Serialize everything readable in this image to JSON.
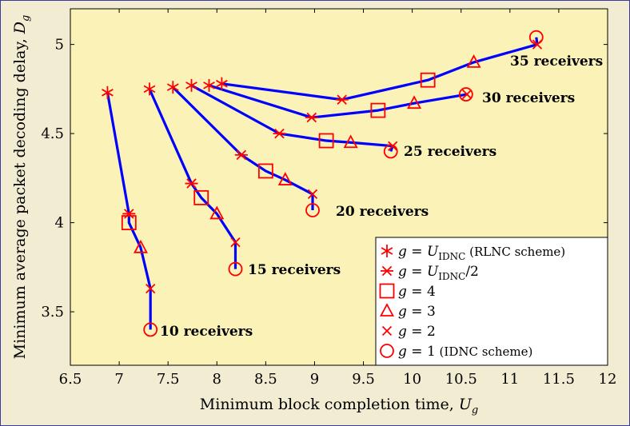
{
  "chart_data": {
    "type": "line",
    "title": "",
    "xlabel_main": "Minimum block completion time, ",
    "xlabel_var": "U",
    "xlabel_sub": "g",
    "ylabel_main": "Minimum average packet decoding delay, ",
    "ylabel_var": "D",
    "ylabel_sub": "g",
    "xlim": [
      6.5,
      12
    ],
    "ylim": [
      3.2,
      5.2
    ],
    "xticks": [
      "6.5",
      "7",
      "7.5",
      "8",
      "8.5",
      "9",
      "9.5",
      "10",
      "10.5",
      "11",
      "11.5",
      "12"
    ],
    "yticks": [
      "3.5",
      "4",
      "4.5",
      "5"
    ],
    "colors": {
      "line": "#0000ff",
      "marker": "#ff0000",
      "plot_bg": "#fbf2b8"
    },
    "series": [
      {
        "name": "10 receivers",
        "label": "10 receivers",
        "points": [
          [
            6.88,
            4.73
          ],
          [
            7.1,
            4.05
          ],
          [
            7.1,
            4.0
          ],
          [
            7.22,
            3.86
          ],
          [
            7.32,
            3.63
          ],
          [
            7.32,
            3.4
          ]
        ],
        "markers": [
          "U",
          "U2",
          "g4",
          "g3",
          "g2",
          "g1"
        ]
      },
      {
        "name": "15 receivers",
        "label": "15 receivers",
        "points": [
          [
            7.31,
            4.75
          ],
          [
            7.74,
            4.22
          ],
          [
            7.84,
            4.14
          ],
          [
            8.0,
            4.05
          ],
          [
            8.19,
            3.89
          ],
          [
            8.19,
            3.74
          ]
        ],
        "markers": [
          "U",
          "U2",
          "g4",
          "g3",
          "g2",
          "g1"
        ]
      },
      {
        "name": "20 receivers",
        "label": "20 receivers",
        "points": [
          [
            7.55,
            4.76
          ],
          [
            8.25,
            4.38
          ],
          [
            8.5,
            4.29
          ],
          [
            8.7,
            4.24
          ],
          [
            8.98,
            4.16
          ],
          [
            8.98,
            4.07
          ]
        ],
        "markers": [
          "U",
          "U2",
          "g4",
          "g3",
          "g2",
          "g1"
        ]
      },
      {
        "name": "25 receivers",
        "label": "25 receivers",
        "points": [
          [
            7.74,
            4.77
          ],
          [
            8.64,
            4.5
          ],
          [
            9.12,
            4.46
          ],
          [
            9.37,
            4.45
          ],
          [
            9.8,
            4.43
          ],
          [
            9.78,
            4.4
          ]
        ],
        "markers": [
          "U",
          "U2",
          "g4",
          "g3",
          "g2",
          "g1"
        ]
      },
      {
        "name": "30 receivers",
        "label": "30 receivers",
        "points": [
          [
            7.92,
            4.77
          ],
          [
            8.97,
            4.59
          ],
          [
            9.65,
            4.63
          ],
          [
            10.02,
            4.67
          ],
          [
            10.56,
            4.72
          ],
          [
            10.55,
            4.72
          ]
        ],
        "markers": [
          "U",
          "U2",
          "g4",
          "g3",
          "g2",
          "g1"
        ]
      },
      {
        "name": "35 receivers",
        "label": "35 receivers",
        "points": [
          [
            8.05,
            4.78
          ],
          [
            9.28,
            4.69
          ],
          [
            10.16,
            4.8
          ],
          [
            10.63,
            4.9
          ],
          [
            11.28,
            5.0
          ],
          [
            11.27,
            5.04
          ]
        ],
        "markers": [
          "U",
          "U2",
          "g4",
          "g3",
          "g2",
          "g1"
        ]
      }
    ],
    "legend": {
      "position": "bottom-right",
      "entries": [
        {
          "marker": "U",
          "prefix": "g = U",
          "sub": "IDNC",
          "suffix": " (RLNC scheme)"
        },
        {
          "marker": "U2",
          "prefix": "g = U",
          "sub": "IDNC",
          "suffix": "/2"
        },
        {
          "marker": "g4",
          "prefix": "g = 4",
          "sub": "",
          "suffix": ""
        },
        {
          "marker": "g3",
          "prefix": "g = 3",
          "sub": "",
          "suffix": ""
        },
        {
          "marker": "g2",
          "prefix": "g = 2",
          "sub": "",
          "suffix": ""
        },
        {
          "marker": "g1",
          "prefix": "g = 1",
          "sub": "",
          "suffix": " (IDNC scheme)"
        }
      ]
    }
  }
}
